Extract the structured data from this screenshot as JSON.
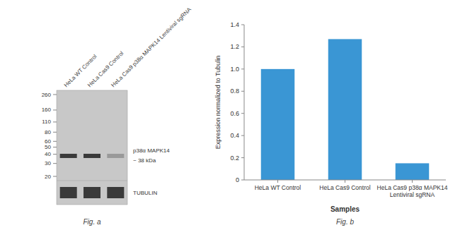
{
  "chart_data": [
    {
      "type": "blot",
      "categories": [
        "HeLa WT Control",
        "HeLa Cas9 Control",
        "HeLa Cas9 p38α MAPK14 Lentiviral sgRNA"
      ],
      "log": "y",
      "ylim": [
        20,
        260
      ],
      "yticks": [
        260,
        160,
        110,
        80,
        60,
        50,
        40,
        30,
        20
      ],
      "color": "#c8c8c8",
      "series": [
        {
          "name": "p38α MAPK14",
          "values": [
            38,
            38,
            38
          ],
          "colors": [
            "#3a3a3a",
            "#3a3a3a",
            "#999999"
          ]
        },
        {
          "name": "TUBULIN",
          "color": "#3a3a3a"
        }
      ],
      "annotations": [
        "~ 38 kDa"
      ],
      "caption": "Fig. a"
    },
    {
      "type": "bar",
      "categories": [
        "HeLa WT Control",
        "HeLa Cas9 Control",
        "HeLa Cas9 p38α MAPK14\nLentiviral sgRNA"
      ],
      "values": [
        1.0,
        1.27,
        0.15
      ],
      "color": "#3a96d4",
      "ylabel": "Expression normalized to Tubulin",
      "xlabel": "Samples",
      "ylim": [
        0,
        1.4
      ],
      "yticks": [
        0,
        0.2,
        0.4,
        0.6,
        0.8,
        {
          "value": 1.0,
          "label": "1.0"
        },
        1.2,
        1.4
      ],
      "caption": "Fig. b"
    }
  ]
}
